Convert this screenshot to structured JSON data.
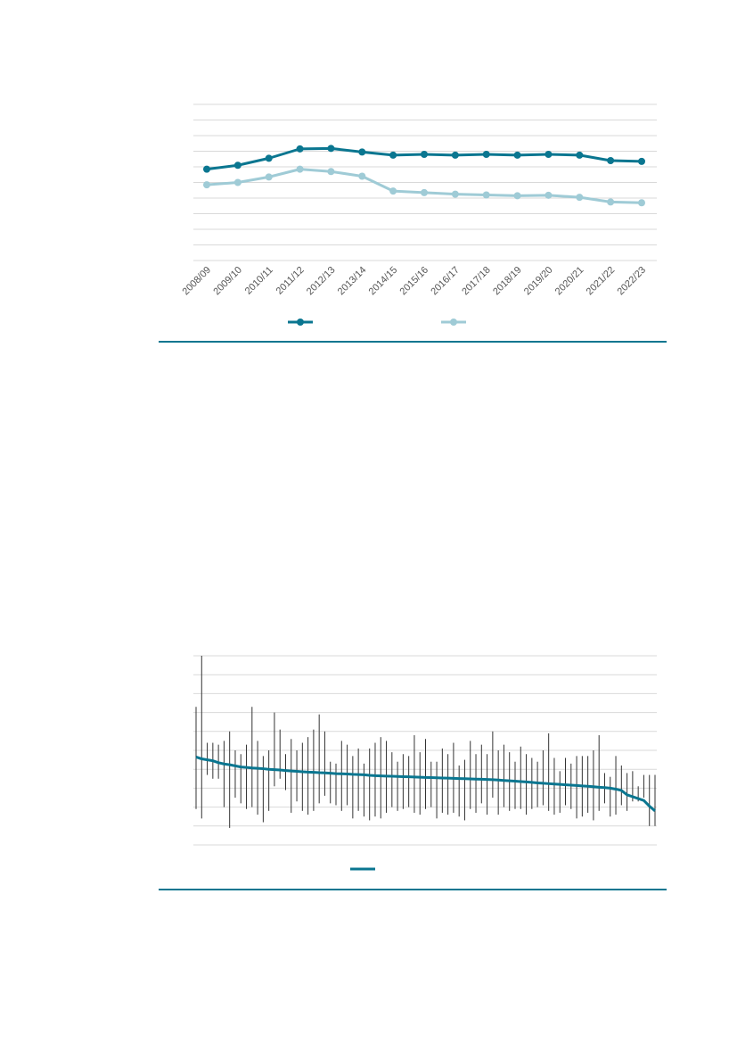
{
  "colors": {
    "background": "#ffffff",
    "primary": "#0a7690",
    "secondary": "#9fcbd6",
    "gridline": "#d9d9d9",
    "rule": "#0a7690",
    "errorbar": "#333333"
  },
  "chart_data": [
    {
      "type": "line",
      "title": "",
      "xlabel": "",
      "ylabel": "",
      "categories": [
        "2008/09",
        "2009/10",
        "2010/11",
        "2011/12",
        "2012/13",
        "2013/14",
        "2014/15",
        "2015/16",
        "2016/17",
        "2017/18",
        "2018/19",
        "2019/20",
        "2020/21",
        "2021/22",
        "2022/23"
      ],
      "ylim": [
        0,
        100
      ],
      "gridlines": 10,
      "grid": true,
      "legend_position": "bottom",
      "series": [
        {
          "color": "#0a7690",
          "marker": "circle",
          "values": [
            58.5,
            61,
            65.5,
            71.5,
            71.8,
            69.5,
            67.5,
            68,
            67.5,
            68,
            67.5,
            68,
            67.5,
            64,
            63.5
          ]
        },
        {
          "color": "#9fcbd6",
          "marker": "circle",
          "values": [
            48.5,
            50,
            53.5,
            58.5,
            57,
            54,
            44.5,
            43.5,
            42.5,
            42,
            41.5,
            41.8,
            40.5,
            37.5,
            37
          ]
        }
      ]
    },
    {
      "type": "line",
      "title": "",
      "xlabel": "",
      "ylabel": "",
      "ylim": [
        0,
        100
      ],
      "gridlines": 10,
      "grid": true,
      "legend_position": "bottom",
      "series": [
        {
          "color": "#0a7690",
          "values": [
            46.5,
            45.5,
            45,
            44.5,
            43.5,
            42.8,
            42.4,
            41.8,
            41.2,
            41,
            40.7,
            40.5,
            40.3,
            40,
            39.8,
            39.6,
            39.3,
            39.1,
            38.9,
            38.7,
            38.5,
            38.4,
            38.2,
            38.1,
            37.9,
            37.7,
            37.6,
            37.5,
            37.3,
            37.2,
            37.1,
            36.8,
            36.6,
            36.5,
            36.4,
            36.3,
            36.2,
            36.1,
            36,
            35.9,
            35.8,
            35.7,
            35.6,
            35.5,
            35.4,
            35.3,
            35.2,
            35.1,
            35,
            34.9,
            34.8,
            34.7,
            34.6,
            34.5,
            34.3,
            34.1,
            33.9,
            33.7,
            33.5,
            33.3,
            33.1,
            32.8,
            32.6,
            32.4,
            32.2,
            32,
            31.8,
            31.6,
            31.4,
            31.2,
            31,
            30.8,
            30.5,
            30.3,
            30,
            29.5,
            28.8,
            26.5,
            25.5,
            24.5,
            23.5,
            20.5,
            18
          ],
          "error_low": [
            19,
            14,
            37,
            35,
            35,
            20,
            9,
            25,
            22,
            19,
            20,
            16,
            12,
            18,
            31,
            35,
            29,
            17,
            23,
            18,
            16,
            18,
            22,
            26,
            22,
            21,
            18,
            21,
            14,
            18,
            15,
            13,
            15,
            14,
            17,
            20,
            18,
            19,
            20,
            17,
            16,
            19,
            20,
            14,
            17,
            16,
            17,
            15,
            13,
            19,
            17,
            22,
            16,
            25,
            16,
            20,
            18,
            19,
            19,
            16,
            19,
            20,
            21,
            18,
            16,
            17,
            21,
            19,
            14,
            15,
            17,
            13,
            18,
            22,
            15,
            16,
            21,
            18,
            23,
            23,
            25,
            10,
            10
          ],
          "error_high": [
            73,
            100,
            54,
            54,
            53,
            55,
            60,
            50,
            48,
            53,
            73,
            55,
            47,
            50,
            70,
            61,
            48,
            56,
            50,
            54,
            57,
            61,
            69,
            60,
            44,
            43,
            55,
            53,
            47,
            51,
            43,
            51,
            54,
            57,
            55,
            49,
            44,
            48,
            47,
            58,
            49,
            56,
            44,
            44,
            51,
            48,
            54,
            42,
            45,
            55,
            48,
            53,
            48,
            60,
            50,
            53,
            49,
            44,
            52,
            48,
            46,
            44,
            50,
            59,
            46,
            39,
            46,
            43,
            47,
            47,
            47,
            50,
            58,
            38,
            36,
            47,
            42,
            38,
            39,
            31,
            37,
            37,
            37
          ]
        }
      ]
    }
  ]
}
